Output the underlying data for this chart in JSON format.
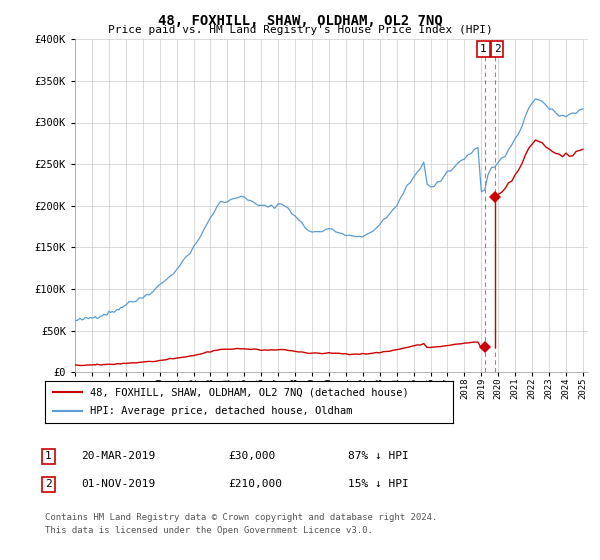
{
  "title": "48, FOXHILL, SHAW, OLDHAM, OL2 7NQ",
  "subtitle": "Price paid vs. HM Land Registry's House Price Index (HPI)",
  "ylim": [
    0,
    400000
  ],
  "yticks": [
    0,
    50000,
    100000,
    150000,
    200000,
    250000,
    300000,
    350000,
    400000
  ],
  "xlim_start": 1995,
  "xlim_end": 2025.3,
  "hpi_color": "#5b9bd5",
  "price_color": "#cc0000",
  "transaction1": {
    "date": "20-MAR-2019",
    "price": 30000,
    "pct": "87% ↓ HPI",
    "num": "1",
    "year": 2019.22
  },
  "transaction2": {
    "date": "01-NOV-2019",
    "price": 210000,
    "pct": "15% ↓ HPI",
    "num": "2",
    "year": 2019.83
  },
  "legend_label1": "48, FOXHILL, SHAW, OLDHAM, OL2 7NQ (detached house)",
  "legend_label2": "HPI: Average price, detached house, Oldham",
  "footnote1": "Contains HM Land Registry data © Crown copyright and database right 2024.",
  "footnote2": "This data is licensed under the Open Government Licence v3.0.",
  "bg_color": "#ffffff",
  "grid_color": "#cccccc",
  "hpi_years": [
    1995.0,
    1995.1,
    1995.2,
    1995.3,
    1995.4,
    1995.5,
    1995.6,
    1995.7,
    1995.8,
    1995.9,
    1996.0,
    1996.1,
    1996.2,
    1996.3,
    1996.4,
    1996.5,
    1996.6,
    1996.7,
    1996.8,
    1996.9,
    1997.0,
    1997.1,
    1997.2,
    1997.3,
    1997.4,
    1997.5,
    1997.6,
    1997.7,
    1997.8,
    1997.9,
    1998.0,
    1998.2,
    1998.4,
    1998.6,
    1998.8,
    1999.0,
    1999.2,
    1999.4,
    1999.6,
    1999.8,
    2000.0,
    2000.2,
    2000.4,
    2000.6,
    2000.8,
    2001.0,
    2001.2,
    2001.4,
    2001.6,
    2001.8,
    2002.0,
    2002.2,
    2002.4,
    2002.6,
    2002.8,
    2003.0,
    2003.2,
    2003.4,
    2003.6,
    2003.8,
    2004.0,
    2004.2,
    2004.4,
    2004.6,
    2004.8,
    2005.0,
    2005.2,
    2005.4,
    2005.6,
    2005.8,
    2006.0,
    2006.2,
    2006.4,
    2006.6,
    2006.8,
    2007.0,
    2007.2,
    2007.4,
    2007.6,
    2007.8,
    2008.0,
    2008.2,
    2008.4,
    2008.6,
    2008.8,
    2009.0,
    2009.2,
    2009.4,
    2009.6,
    2009.8,
    2010.0,
    2010.2,
    2010.4,
    2010.6,
    2010.8,
    2011.0,
    2011.2,
    2011.4,
    2011.6,
    2011.8,
    2012.0,
    2012.2,
    2012.4,
    2012.6,
    2012.8,
    2013.0,
    2013.2,
    2013.4,
    2013.6,
    2013.8,
    2014.0,
    2014.2,
    2014.4,
    2014.6,
    2014.8,
    2015.0,
    2015.2,
    2015.4,
    2015.6,
    2015.8,
    2016.0,
    2016.2,
    2016.4,
    2016.6,
    2016.8,
    2017.0,
    2017.2,
    2017.4,
    2017.6,
    2017.8,
    2018.0,
    2018.2,
    2018.4,
    2018.6,
    2018.8,
    2019.0,
    2019.2,
    2019.4,
    2019.6,
    2019.8,
    2020.0,
    2020.2,
    2020.4,
    2020.6,
    2020.8,
    2021.0,
    2021.2,
    2021.4,
    2021.6,
    2021.8,
    2022.0,
    2022.2,
    2022.4,
    2022.6,
    2022.8,
    2023.0,
    2023.2,
    2023.4,
    2023.6,
    2023.8,
    2024.0,
    2024.2,
    2024.4,
    2024.6,
    2024.8,
    2025.0
  ],
  "hpi_values": [
    62000,
    62300,
    62600,
    63000,
    63400,
    63800,
    64200,
    64600,
    65000,
    65400,
    65800,
    66200,
    66600,
    67100,
    67600,
    68200,
    68800,
    69400,
    70100,
    70800,
    71500,
    72200,
    73000,
    73800,
    74600,
    75500,
    76500,
    77600,
    78800,
    80100,
    81400,
    83000,
    84700,
    86500,
    88500,
    90600,
    93000,
    95600,
    98400,
    101400,
    104600,
    108000,
    111700,
    115600,
    119800,
    124200,
    128900,
    133900,
    139200,
    144800,
    150700,
    156900,
    163400,
    170200,
    177300,
    184700,
    192300,
    200100,
    205000,
    203000,
    205000,
    208000,
    210000,
    211000,
    210500,
    209000,
    207000,
    205000,
    203000,
    201500,
    200000,
    199000,
    198500,
    199000,
    200000,
    201500,
    202000,
    200000,
    197000,
    193000,
    188000,
    183000,
    178000,
    174000,
    171000,
    169000,
    168000,
    168500,
    169500,
    171000,
    172500,
    171000,
    169500,
    168000,
    167000,
    165800,
    164500,
    163500,
    163000,
    163500,
    164500,
    166000,
    168000,
    170500,
    173500,
    177000,
    181000,
    185500,
    190500,
    196000,
    202000,
    208500,
    215000,
    221500,
    228000,
    234000,
    240000,
    246000,
    251000,
    225000,
    222000,
    224000,
    227000,
    231000,
    235000,
    239000,
    243000,
    247000,
    251000,
    255000,
    258000,
    261000,
    264000,
    267500,
    271000,
    215000,
    220000,
    238000,
    245000,
    248000,
    252000,
    256000,
    261000,
    267000,
    273000,
    280000,
    288000,
    297000,
    307000,
    317000,
    323000,
    328000,
    328000,
    325000,
    321000,
    317000,
    314000,
    311000,
    309000,
    308000,
    308000,
    309000,
    310000,
    312000,
    314000,
    316000
  ]
}
